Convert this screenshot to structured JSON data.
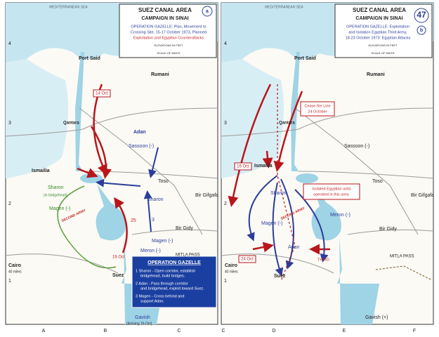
{
  "grid": {
    "columns": [
      "A",
      "B",
      "C",
      "D",
      "E",
      "F"
    ],
    "rows": [
      "4",
      "3",
      "2",
      "1"
    ]
  },
  "left": {
    "sea": "MEDITERRANEAN SEA",
    "title": "SUEZ CANAL AREA",
    "subtitle": "CAMPAIGN IN SINAI",
    "panel_label": "a",
    "description": [
      "OPERATION GAZELLE: Plan, Movement to",
      "Crossing Site, 15-17 October 1973, Planned",
      "Exploitation and Egyptian Counterattacks"
    ],
    "elevation": "ELEVATIONS IN FEET",
    "scale": "SCALE OF MILES",
    "places": [
      "Port Said",
      "14 Oct",
      "Rumani",
      "Qantara",
      "Adan",
      "Sassoon (-)",
      "Ismailia",
      "Toso",
      "Sharon",
      "Bir Gifgafa",
      "Sharon",
      "(in bridgehead)",
      "Magen (-)",
      "SECOND ARMY",
      "25",
      "3",
      "Bir Gidy",
      "Magen (-)",
      "Meron (-)",
      "MITLA PASS",
      "16 Oct",
      "Cairo",
      "40 miles",
      "Suez",
      "Gavish",
      "(Arriving 16 Oct)"
    ],
    "legend": {
      "title": "OPERATION GAZELLE",
      "items": [
        "1 Sharon - Open corridor, establish",
        "bridgehead, build bridges.",
        "2 Adan - Pass through corridor",
        "and bridgehead, exploit toward Suez.",
        "3 Magen - Cross behind and",
        "support Adan."
      ]
    }
  },
  "right": {
    "sea": "MEDITERRANEAN SEA",
    "title": "SUEZ CANAL AREA",
    "subtitle": "CAMPAIGN IN SINAI",
    "map_number": "47",
    "panel_label": "b",
    "description": [
      "OPERATION GAZELLE: Exploitation",
      "and Isolation Egyptian Third Army,",
      "18-23 October 1973: Egyptian Attacks"
    ],
    "elevation": "ELEVATIONS IN FEET",
    "scale": "SCALE OF MILES",
    "places": [
      "Port Said",
      "Rumani",
      "Qantara",
      "Cease-fire Line",
      "24 October",
      "Sassoon (-)",
      "16 Oct",
      "Ismailia",
      "Toso",
      "Sharon",
      "Bir Gifgafa",
      "Isolated Egyptian units",
      "operated in this area.",
      "SECOND ARMY",
      "Meron (-)",
      "Bir Gidy",
      "Magen (-)",
      "Adan",
      "THIRD",
      "24 Oct",
      "MITLA PASS",
      "Cairo",
      "40 miles",
      "Suez",
      "Gavish (+)"
    ]
  }
}
